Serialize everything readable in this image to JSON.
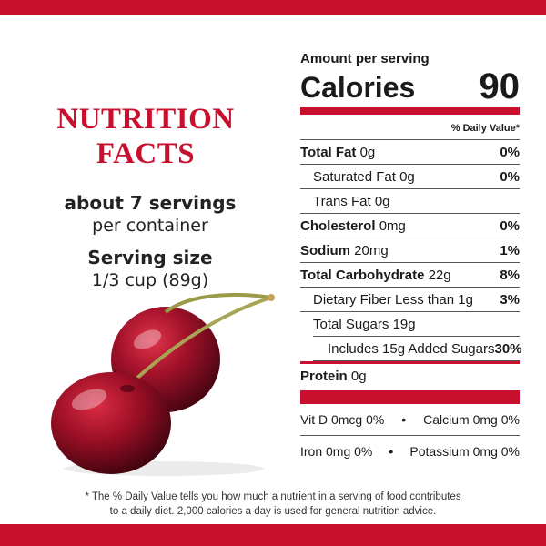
{
  "left": {
    "heading_line1": "NUTRITION",
    "heading_line2": "FACTS",
    "servings_count": "about 7 servings",
    "servings_sub": "per container",
    "serving_size_label": "Serving size",
    "serving_size_value": "1/3 cup (89g)"
  },
  "panel": {
    "amount_per_serving": "Amount per serving",
    "calories_label": "Calories",
    "calories_value": "90",
    "dv_header": "% Daily Value*",
    "rows": [
      {
        "name": "Total Fat",
        "amount": "0g",
        "dv": "0%"
      },
      {
        "name": "Saturated Fat",
        "amount": "0g",
        "dv": "0%"
      },
      {
        "name": "Trans Fat",
        "amount": "0g",
        "dv": ""
      },
      {
        "name": "Cholesterol",
        "amount": "0mg",
        "dv": "0%"
      },
      {
        "name": "Sodium",
        "amount": "20mg",
        "dv": "1%"
      },
      {
        "name": "Total Carbohydrate",
        "amount": "22g",
        "dv": "8%"
      },
      {
        "name": "Dietary Fiber",
        "amount": "Less than 1g",
        "dv": "3%"
      },
      {
        "name": "Total Sugars",
        "amount": "19g",
        "dv": ""
      },
      {
        "name": "Includes 15g Added Sugars",
        "amount": "",
        "dv": "30%"
      },
      {
        "name": "Protein",
        "amount": "0g",
        "dv": ""
      }
    ],
    "vitamins": [
      {
        "left": "Vit D 0mcg 0%",
        "right": "Calcium 0mg 0%"
      },
      {
        "left": "Iron 0mg 0%",
        "right": "Potassium 0mg 0%"
      }
    ],
    "bullet": "•"
  },
  "footnote": {
    "line1": "* The % Daily Value tells you how much a nutrient in a serving of food contributes",
    "line2": "to a daily diet. 2,000 calories a day is used for general nutrition advice."
  },
  "colors": {
    "accent_red": "#c8102e"
  },
  "images": {
    "cherries": "cherries-image"
  }
}
